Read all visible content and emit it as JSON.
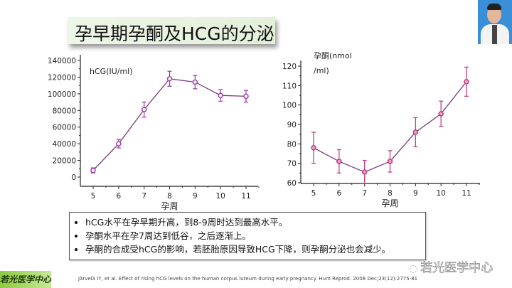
{
  "slide": {
    "title": "孕早期孕酮及HCG的分泌",
    "notes": [
      "hCG水平在孕早期升高，到8-9周时达到最高水平。",
      "孕酮水平在孕7周达到低谷，之后逐渐上。",
      "孕酮的合成受hCG的影响，若胚胎原因导致HCG下降，则孕酮分泌也会减少。"
    ],
    "logo_badge": "若光医学中心",
    "citation": "Järvelä IY, et al. Effect of rising hCG levels on the human corpus luteum during early pregnancy. Hum Reprod. 2008 Dec;23(12):2775-81",
    "watermark": "若光医学中心",
    "colors": {
      "hcg_line": "#a040b0",
      "prog_line": "#c04080",
      "title_bg": "#e6f2dd",
      "badge": "#8ecb3f"
    }
  },
  "chart_data": [
    {
      "type": "line",
      "ylabel": "hCG(IU/ml)",
      "xlabel": "孕周",
      "x": [
        5,
        6,
        7,
        8,
        9,
        10,
        11
      ],
      "xticks": [
        "5",
        "6",
        "7",
        "8",
        "9",
        "10",
        "11"
      ],
      "yticks": [
        "0",
        "20000",
        "40000",
        "60000",
        "80000",
        "100000",
        "120000",
        "140000"
      ],
      "ylim": [
        0,
        140000
      ],
      "series": [
        {
          "values": [
            8000,
            40000,
            81000,
            118000,
            114000,
            98000,
            97000
          ],
          "errors": [
            3000,
            5000,
            9000,
            9000,
            8000,
            7000,
            7000
          ]
        }
      ]
    },
    {
      "type": "line",
      "ylabel": [
        "孕酮(nmol",
        "/ml)"
      ],
      "xlabel": "孕周",
      "x": [
        5,
        6,
        7,
        8,
        9,
        10,
        11
      ],
      "xticks": [
        "5",
        "6",
        "7",
        "8",
        "9",
        "10",
        "11"
      ],
      "yticks": [
        "60",
        "70",
        "80",
        "90",
        "100",
        "110",
        "120"
      ],
      "ylim": [
        60,
        120
      ],
      "series": [
        {
          "values": [
            78,
            71,
            65.5,
            71,
            86,
            95.5,
            112
          ],
          "errors": [
            8,
            6,
            6,
            5.5,
            7.5,
            6.5,
            7.5
          ]
        }
      ]
    }
  ]
}
